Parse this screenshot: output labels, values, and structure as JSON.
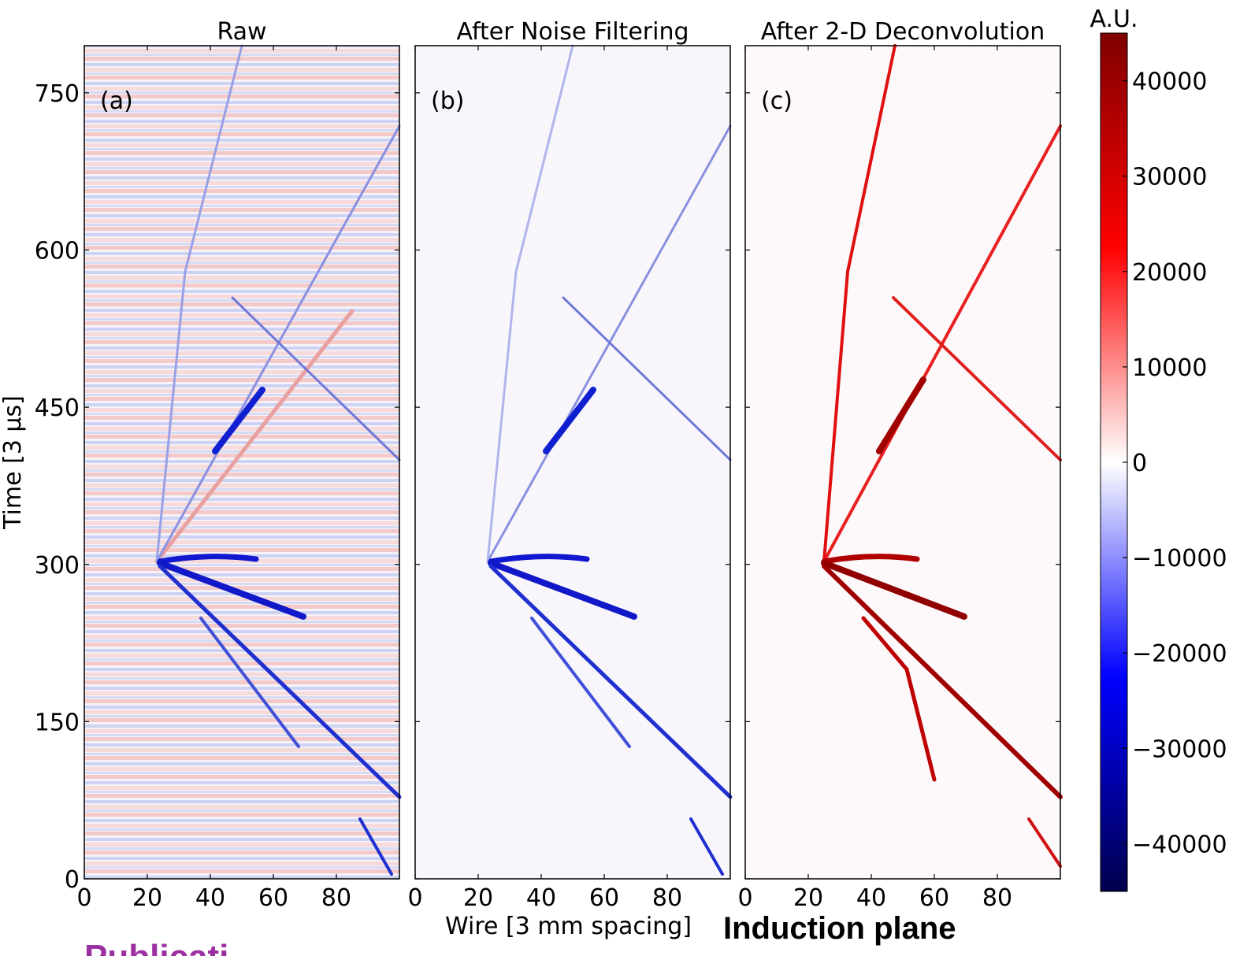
{
  "chart_data": [
    {
      "type": "heatmap",
      "title": "Raw",
      "panel_label": "(a)",
      "xlim": [
        0,
        100
      ],
      "xticks": [
        0,
        20,
        40,
        60,
        80
      ],
      "ylim": [
        0,
        795
      ],
      "yticks": [
        0,
        150,
        300,
        450,
        600,
        750
      ],
      "ylabel": "Time [3 μs]"
    },
    {
      "type": "heatmap",
      "title": "After Noise Filtering",
      "panel_label": "(b)",
      "xlim": [
        0,
        100
      ],
      "xticks": [
        0,
        20,
        40,
        60,
        80
      ],
      "xlabel": "Wire [3 mm spacing]"
    },
    {
      "type": "heatmap",
      "title": "After 2-D Deconvolution",
      "panel_label": "(c)",
      "xlim": [
        0,
        100
      ],
      "xticks": [
        0,
        20,
        40,
        60,
        80
      ],
      "annotation": "Induction plane",
      "colorbar": {
        "label": "A.U.",
        "lim": [
          -45000,
          45000
        ],
        "ticks": [
          {
            "value": -40000,
            "label": "−40000"
          },
          {
            "value": -30000,
            "label": "−30000"
          },
          {
            "value": -20000,
            "label": "−20000"
          },
          {
            "value": -10000,
            "label": "−10000"
          },
          0,
          10000,
          20000,
          30000,
          40000
        ]
      }
    }
  ],
  "footer": "Publicati"
}
